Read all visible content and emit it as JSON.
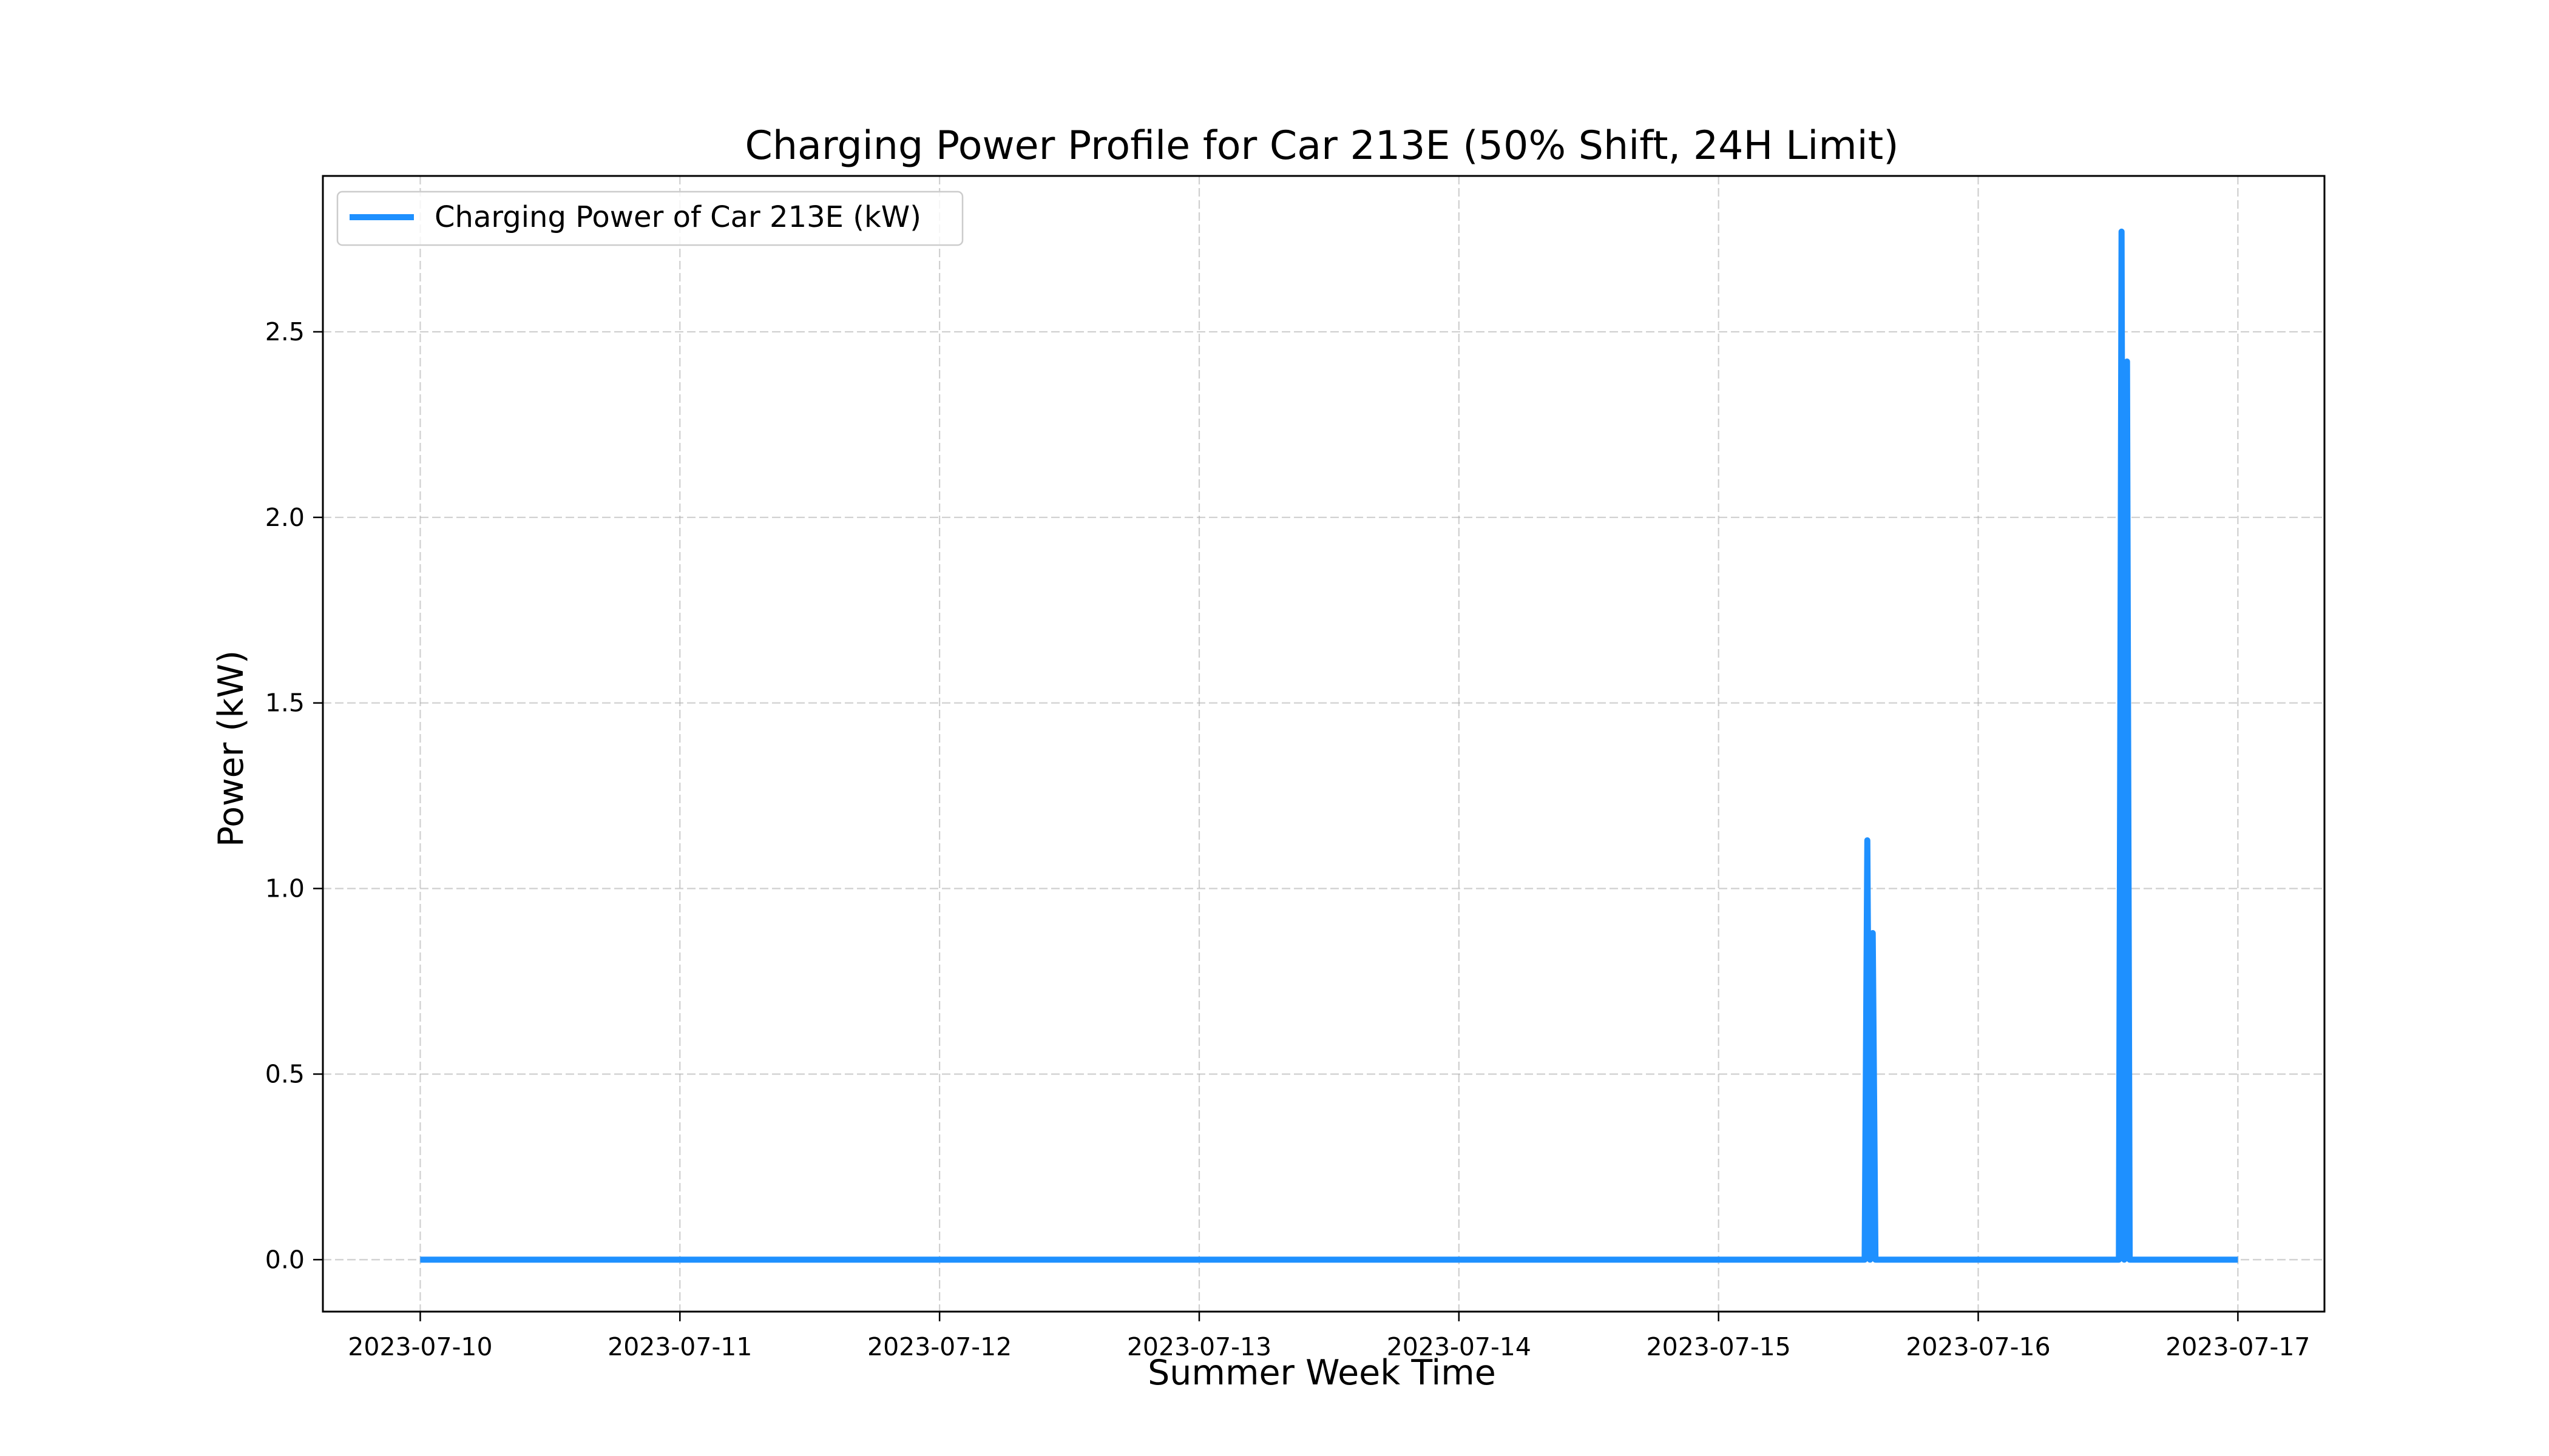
{
  "chart_data": {
    "type": "line",
    "title": "Charging Power Profile for Car 213E (50% Shift, 24H Limit)",
    "xlabel": "Summer Week Time",
    "ylabel": "Power (kW)",
    "xlim": [
      "2023-07-09T15:00",
      "2023-07-17T08:00"
    ],
    "ylim": [
      -0.14,
      2.92
    ],
    "x_ticks": [
      "2023-07-10",
      "2023-07-11",
      "2023-07-12",
      "2023-07-13",
      "2023-07-14",
      "2023-07-15",
      "2023-07-16",
      "2023-07-17"
    ],
    "y_ticks": [
      "0.0",
      "0.5",
      "1.0",
      "1.5",
      "2.0",
      "2.5"
    ],
    "grid": true,
    "legend_placement": "upper-left",
    "series": [
      {
        "name": "Charging Power of Car 213E (kW)",
        "color": "#1e90ff",
        "x": [
          "2023-07-10T00:00",
          "2023-07-15T13:30",
          "2023-07-15T13:45",
          "2023-07-15T14:00",
          "2023-07-15T14:15",
          "2023-07-15T14:30",
          "2023-07-15T14:45",
          "2023-07-15T15:00",
          "2023-07-16T13:00",
          "2023-07-16T13:15",
          "2023-07-16T13:30",
          "2023-07-16T13:45",
          "2023-07-16T14:00",
          "2023-07-16T14:15",
          "2023-07-16T14:30",
          "2023-07-17T00:00"
        ],
        "y": [
          0.0,
          0.0,
          1.13,
          0.0,
          0.88,
          0.0,
          0.0,
          0.0,
          0.0,
          2.77,
          0.0,
          2.42,
          0.0,
          0.0,
          0.0,
          0.0
        ]
      }
    ]
  }
}
